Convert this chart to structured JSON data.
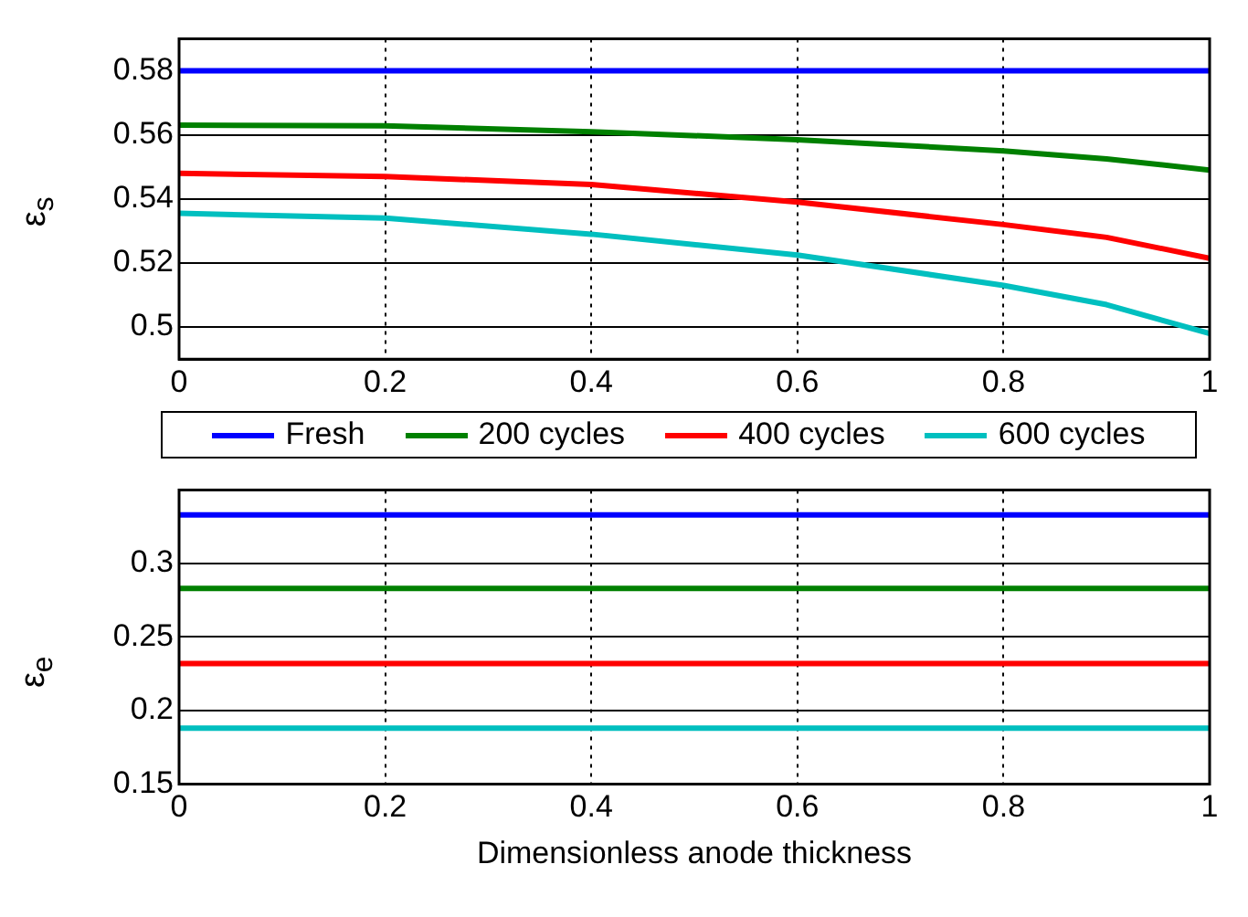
{
  "chart_data": [
    {
      "type": "line",
      "ylabel": "ε$_{s}$",
      "x": [
        0,
        0.2,
        0.4,
        0.6,
        0.8,
        0.9,
        1
      ],
      "series": [
        {
          "name": "Fresh",
          "color": "#0000ff",
          "values": [
            0.58,
            0.58,
            0.58,
            0.58,
            0.58,
            0.58,
            0.58
          ]
        },
        {
          "name": "200 cycles",
          "color": "#008000",
          "values": [
            0.563,
            0.5628,
            0.561,
            0.5585,
            0.555,
            0.5525,
            0.549
          ]
        },
        {
          "name": "400 cycles",
          "color": "#ff0000",
          "values": [
            0.548,
            0.547,
            0.5445,
            0.539,
            0.532,
            0.528,
            0.5215
          ]
        },
        {
          "name": "600 cycles",
          "color": "#00bfbf",
          "values": [
            0.5355,
            0.534,
            0.529,
            0.5225,
            0.513,
            0.507,
            0.498
          ]
        }
      ],
      "xlim": [
        0,
        1
      ],
      "xticks": [
        0,
        0.2,
        0.4,
        0.6,
        0.8,
        1
      ],
      "ylim": [
        0.49,
        0.59
      ],
      "yticks": [
        0.5,
        0.52,
        0.54,
        0.56,
        0.58
      ],
      "grid": true,
      "legend": "bottom"
    },
    {
      "type": "line",
      "ylabel": "ε$_{e}$",
      "xlabel": "Dimensionless anode thickness",
      "x": [
        0,
        1
      ],
      "series": [
        {
          "color": "#0000ff",
          "values": [
            0.333,
            0.333
          ]
        },
        {
          "color": "#008000",
          "values": [
            0.283,
            0.283
          ]
        },
        {
          "color": "#ff0000",
          "values": [
            0.232,
            0.232
          ]
        },
        {
          "color": "#00bfbf",
          "values": [
            0.188,
            0.188
          ]
        }
      ],
      "xlim": [
        0,
        1
      ],
      "xticks": [
        0,
        0.2,
        0.4,
        0.6,
        0.8,
        1
      ],
      "ylim": [
        0.15,
        0.35
      ],
      "yticks": [
        0.15,
        0.2,
        0.25,
        0.3
      ],
      "grid": true
    }
  ]
}
